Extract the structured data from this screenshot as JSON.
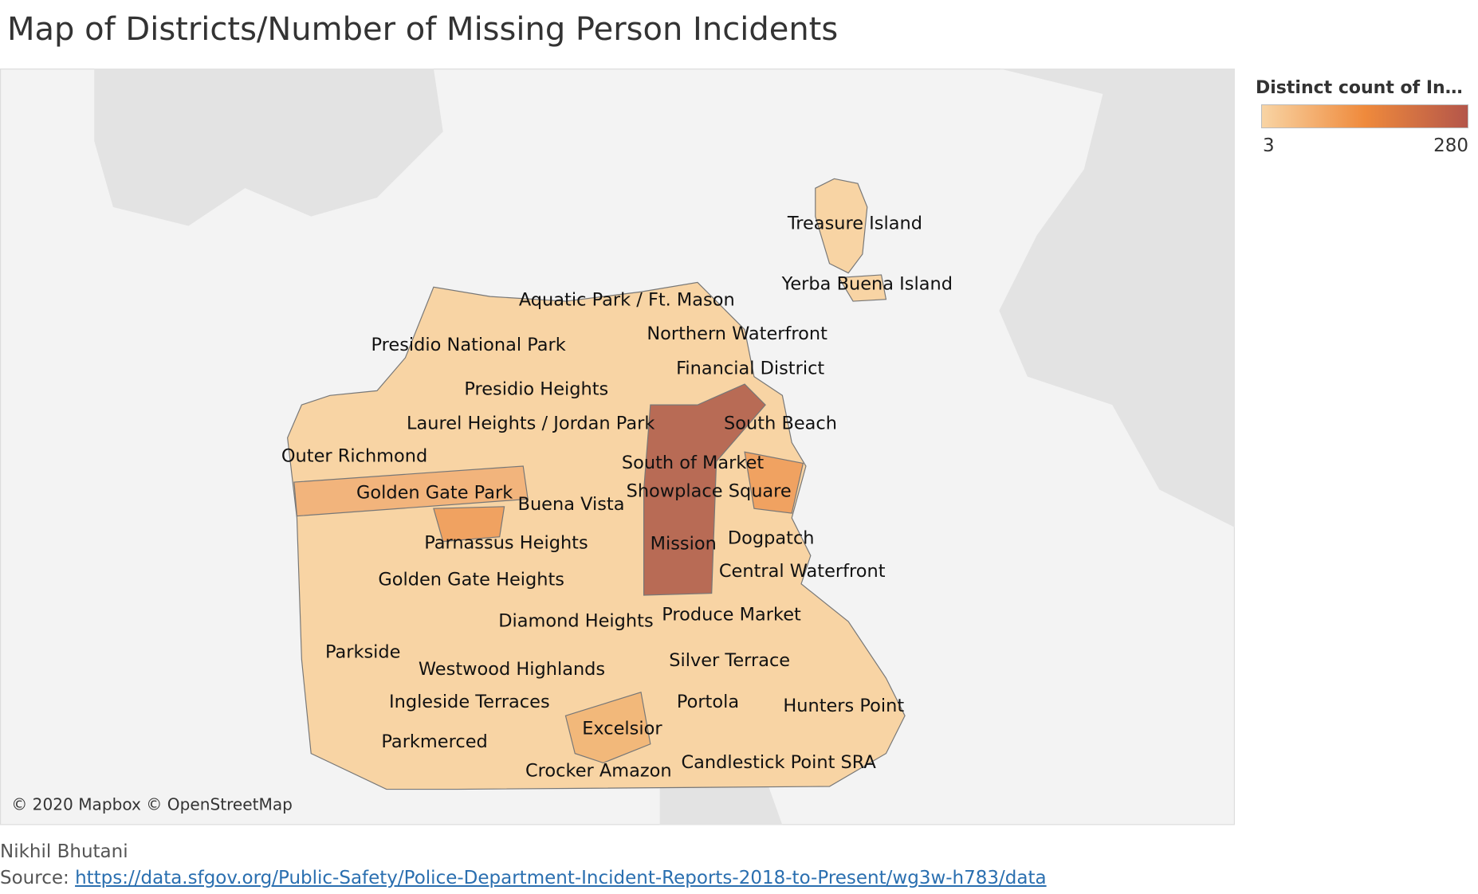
{
  "title": "Map of Districts/Number of Missing Person Incidents",
  "legend": {
    "title": "Distinct count of Incide..",
    "min": 3,
    "max": 280,
    "colors": [
      "#f8d4a4",
      "#ef8a3c",
      "#b4564a"
    ]
  },
  "districts": [
    "Treasure Island",
    "Yerba Buena Island",
    "Aquatic Park / Ft. Mason",
    "Northern Waterfront",
    "Presidio National Park",
    "Financial District",
    "Presidio Heights",
    "Laurel Heights / Jordan Park",
    "South Beach",
    "Outer Richmond",
    "South of Market",
    "Golden Gate Park",
    "Showplace Square",
    "Buena Vista",
    "Parnassus Heights",
    "Mission",
    "Dogpatch",
    "Central Waterfront",
    "Golden Gate Heights",
    "Diamond Heights",
    "Produce Market",
    "Parkside",
    "Silver Terrace",
    "Westwood Highlands",
    "Ingleside Terraces",
    "Portola",
    "Hunters Point",
    "Excelsior",
    "Parkmerced",
    "Candlestick Point SRA",
    "Crocker Amazon"
  ],
  "attribution": "© 2020 Mapbox © OpenStreetMap",
  "author": "Nikhil Bhutani",
  "source": {
    "label": "Source:",
    "url": "https://data.sfgov.org/Public-Safety/Police-Department-Incident-Reports-2018-to-Present/wg3w-h783/data"
  }
}
